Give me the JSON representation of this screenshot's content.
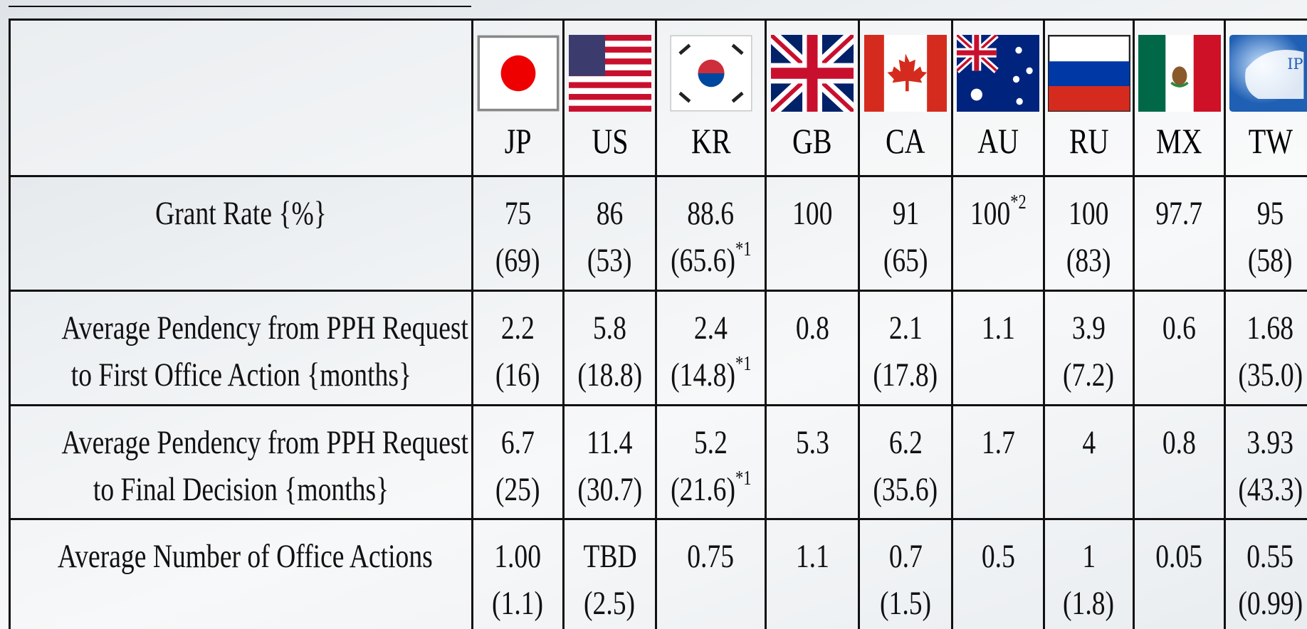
{
  "table": {
    "columns": [
      "JP",
      "US",
      "KR",
      "GB",
      "CA",
      "AU",
      "RU",
      "MX",
      "TW"
    ],
    "rows": [
      {
        "label": [
          "Grant Rate {%}"
        ],
        "cells": [
          {
            "main": "75",
            "sub": "(69)"
          },
          {
            "main": "86",
            "sub": "(53)"
          },
          {
            "main": "88.6",
            "sub": "(65.6)",
            "note": "*1"
          },
          {
            "main": "100"
          },
          {
            "main": "91",
            "sub": "(65)"
          },
          {
            "main": "100",
            "note": "*2"
          },
          {
            "main": "100",
            "sub": "(83)"
          },
          {
            "main": "97.7"
          },
          {
            "main": "95",
            "sub": "(58)"
          }
        ]
      },
      {
        "label": [
          "Average Pendency from PPH Request",
          "to First Office Action {months}"
        ],
        "cells": [
          {
            "main": "2.2",
            "sub": "(16)"
          },
          {
            "main": "5.8",
            "sub": "(18.8)"
          },
          {
            "main": "2.4",
            "sub": "(14.8)",
            "note": "*1"
          },
          {
            "main": "0.8"
          },
          {
            "main": "2.1",
            "sub": "(17.8)"
          },
          {
            "main": "1.1"
          },
          {
            "main": "3.9",
            "sub": "(7.2)"
          },
          {
            "main": "0.6"
          },
          {
            "main": "1.68",
            "sub": "(35.0)"
          }
        ]
      },
      {
        "label": [
          "Average Pendency from PPH Request",
          "to Final Decision {months}"
        ],
        "cells": [
          {
            "main": "6.7",
            "sub": "(25)"
          },
          {
            "main": "11.4",
            "sub": "(30.7)"
          },
          {
            "main": "5.2",
            "sub": "(21.6)",
            "note": "*1"
          },
          {
            "main": "5.3"
          },
          {
            "main": "6.2",
            "sub": "(35.6)"
          },
          {
            "main": "1.7"
          },
          {
            "main": "4"
          },
          {
            "main": "0.8"
          },
          {
            "main": "3.93",
            "sub": "(43.3)"
          }
        ]
      },
      {
        "label": [
          "Average Number of Office Actions"
        ],
        "cells": [
          {
            "main": "1.00",
            "sub": "(1.1)"
          },
          {
            "main": "TBD",
            "sub": "(2.5)"
          },
          {
            "main": "0.75"
          },
          {
            "main": "1.1"
          },
          {
            "main": "0.7",
            "sub": "(1.5)"
          },
          {
            "main": "0.5"
          },
          {
            "main": "1",
            "sub": "(1.8)"
          },
          {
            "main": "0.05"
          },
          {
            "main": "0.55",
            "sub": "(0.99)"
          }
        ]
      }
    ]
  }
}
